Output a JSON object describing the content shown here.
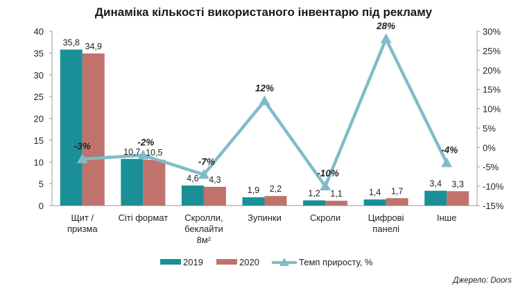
{
  "chart_data": {
    "type": "bar",
    "title": "Динаміка кількості використаного інвентарю під рекламу",
    "categories": [
      "Щит / призма",
      "Сіті формат",
      "Скролли, беклайти 8м²",
      "Зупинки",
      "Скроли",
      "Цифрові панелі",
      "Інше"
    ],
    "category_lines": [
      [
        "Щит /",
        "призма"
      ],
      [
        "Сіті формат"
      ],
      [
        "Скролли,",
        "беклайти",
        "8м²"
      ],
      [
        "Зупинки"
      ],
      [
        "Скроли"
      ],
      [
        "Цифрові",
        "панелі"
      ],
      [
        "Інше"
      ]
    ],
    "series": [
      {
        "name": "2019",
        "values": [
          35.8,
          10.7,
          4.6,
          1.9,
          1.2,
          1.4,
          3.4
        ],
        "labels": [
          "35,8",
          "10,7",
          "4,6",
          "1,9",
          "1,2",
          "1,4",
          "3,4"
        ],
        "color": "#1a8f97"
      },
      {
        "name": "2020",
        "values": [
          34.9,
          10.5,
          4.3,
          2.2,
          1.1,
          1.7,
          3.3
        ],
        "labels": [
          "34,9",
          "10,5",
          "4,3",
          "2,2",
          "1,1",
          "1,7",
          "3,3"
        ],
        "color": "#c0726c"
      }
    ],
    "line_series": {
      "name": "Темп приросту, %",
      "values": [
        -3,
        -2,
        -7,
        12,
        -10,
        28,
        -4
      ],
      "labels": [
        "-3%",
        "-2%",
        "-7%",
        "12%",
        "-10%",
        "28%",
        "-4%"
      ],
      "color": "#7fbcc8"
    },
    "ylim": [
      0,
      40
    ],
    "yticks": [
      0,
      5,
      10,
      15,
      20,
      25,
      30,
      35,
      40
    ],
    "y2lim": [
      -15,
      30
    ],
    "y2ticks": [
      "-15%",
      "-10%",
      "-5%",
      "0%",
      "5%",
      "10%",
      "15%",
      "20%",
      "25%",
      "30%"
    ],
    "legend_position": "bottom",
    "grid": false
  },
  "source": "Джерело: Doors"
}
